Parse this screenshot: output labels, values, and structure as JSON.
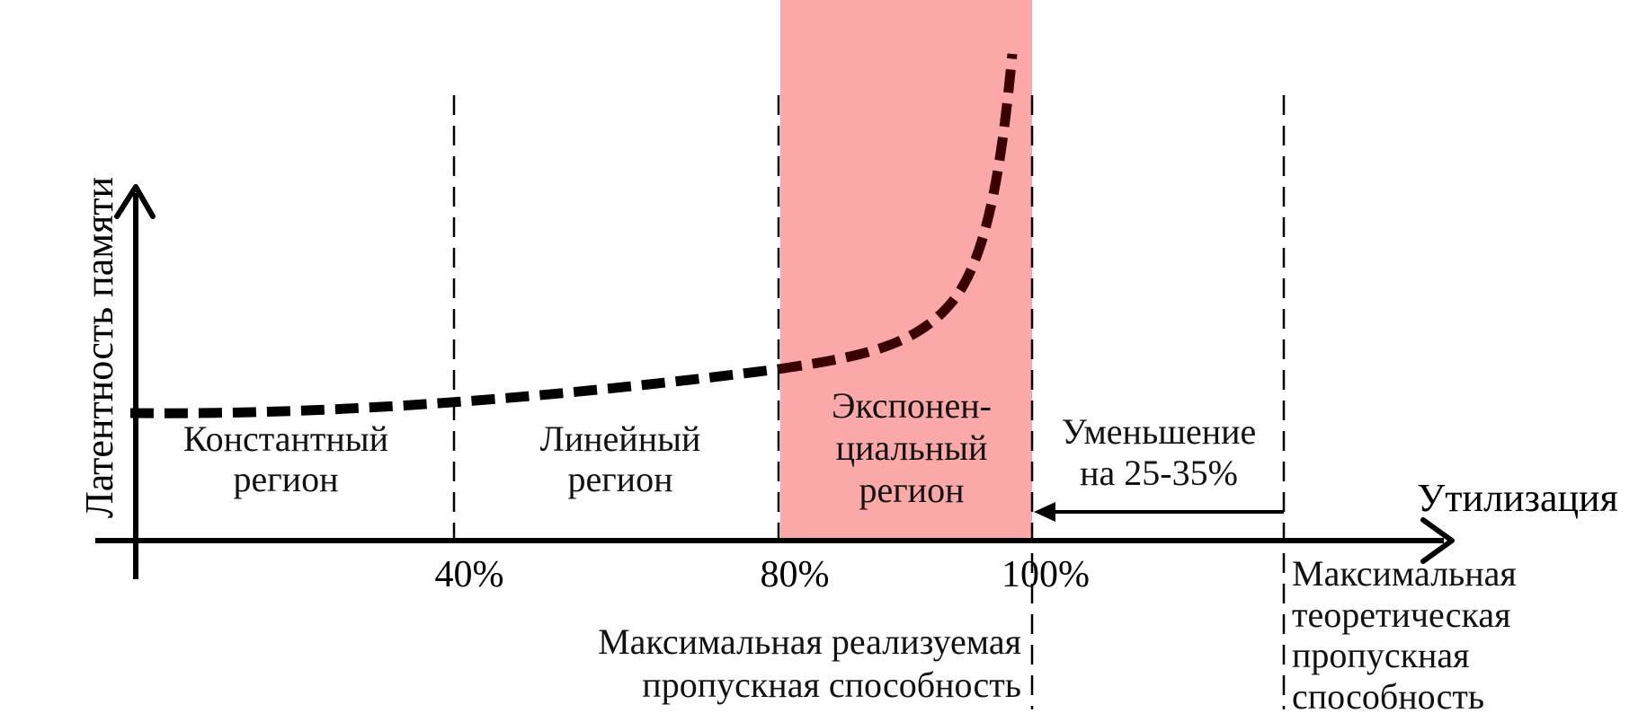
{
  "colors": {
    "axis": "#000000",
    "curve": "#000000",
    "curve_in_region": "#3a0000",
    "exponential_region_fill": "#fba8a8"
  },
  "axes": {
    "x_label": "Утилизация",
    "y_label": "Латентность памяти"
  },
  "ticks": [
    "40%",
    "80%",
    "100%"
  ],
  "regions": {
    "constant": {
      "line1": "Константный",
      "line2": "регион"
    },
    "linear": {
      "line1": "Линейный",
      "line2": "регион"
    },
    "exponential": {
      "line1": "Экспонен-",
      "line2": "циальный",
      "line3": "регион"
    }
  },
  "reduction": {
    "line1": "Уменьшение",
    "line2": "на 25-35%"
  },
  "max_achievable": {
    "line1": "Максимальная реализуемая",
    "line2": "пропускная способность"
  },
  "max_theoretical": {
    "line1": "Максимальная",
    "line2": "теоретическая",
    "line3": "пропускная",
    "line4": "способность"
  },
  "icons": [
    "x-axis-arrow-icon",
    "y-axis-arrow-icon",
    "left-arrow-icon"
  ]
}
